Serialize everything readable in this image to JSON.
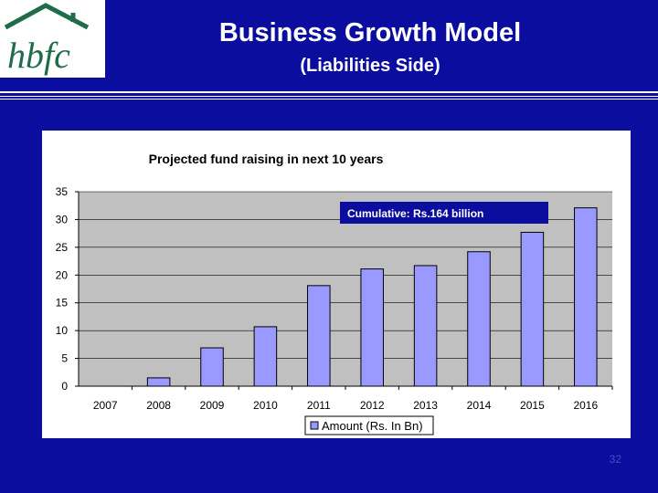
{
  "slide": {
    "title": "Business Growth Model",
    "subtitle": "(Liabilities Side)",
    "page_number": "32",
    "logo_text": "hbfc",
    "background_color": "#0a0d9e"
  },
  "chart_data": {
    "type": "bar",
    "title": "Projected fund raising in next 10 years",
    "categories": [
      "2007",
      "2008",
      "2009",
      "2010",
      "2011",
      "2012",
      "2013",
      "2014",
      "2015",
      "2016"
    ],
    "series": [
      {
        "name": "Amount (Rs. In Bn)",
        "values": [
          0,
          1.5,
          6.9,
          10.7,
          18.1,
          21.1,
          21.7,
          24.2,
          27.7,
          32.1
        ],
        "color": "#9999ff"
      }
    ],
    "ylim": [
      0,
      35
    ],
    "yticks": [
      0,
      5,
      10,
      15,
      20,
      25,
      30,
      35
    ],
    "grid": true,
    "legend_position": "bottom",
    "annotation": "Cumulative:   Rs.164 billion"
  }
}
